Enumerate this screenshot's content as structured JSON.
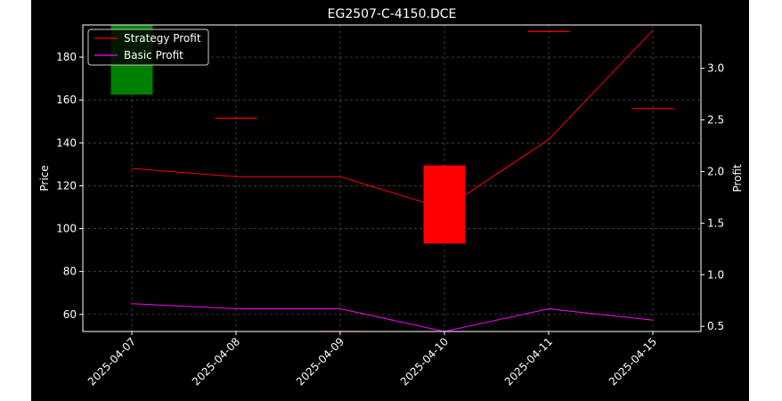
{
  "chart_data": {
    "type": "candlestick+line",
    "title": "EG2507-C-4150.DCE",
    "ylabel_left": "Price",
    "ylabel_right": "Profit",
    "xlabel": "",
    "categories": [
      "2025-04-07",
      "2025-04-08",
      "2025-04-09",
      "2025-04-10",
      "2025-04-11",
      "2025-04-15"
    ],
    "price_ylim": [
      52,
      195
    ],
    "price_yticks": [
      60,
      80,
      100,
      120,
      140,
      160,
      180
    ],
    "profit_ylim": [
      0.45,
      3.42
    ],
    "profit_yticks": [
      0.5,
      1.0,
      1.5,
      2.0,
      2.5,
      3.0
    ],
    "candles": [
      {
        "date": "2025-04-07",
        "open": 162.5,
        "close": 196,
        "high": 196,
        "low": 162.5,
        "color": "#008000"
      },
      {
        "date": "2025-04-08",
        "open": 151.5,
        "close": 151.5,
        "high": 151.5,
        "low": 151.5,
        "color": "#ff0000"
      },
      {
        "date": "2025-04-09",
        "open": 52,
        "close": 52,
        "high": 52,
        "low": 52,
        "color": "#ff0000"
      },
      {
        "date": "2025-04-10",
        "open": 129.5,
        "close": 93,
        "high": 129.5,
        "low": 93,
        "color": "#ff0000"
      },
      {
        "date": "2025-04-11",
        "open": 192,
        "close": 192,
        "high": 192,
        "low": 192,
        "color": "#ff0000"
      },
      {
        "date": "2025-04-15",
        "open": 156,
        "close": 156,
        "high": 156,
        "low": 156,
        "color": "#ff0000"
      }
    ],
    "series": [
      {
        "name": "Strategy Profit",
        "color": "#ff0000",
        "values": [
          2.03,
          1.95,
          1.95,
          1.64,
          2.31,
          3.37
        ]
      },
      {
        "name": "Basic Profit",
        "color": "#ff00ff",
        "values": [
          0.72,
          0.67,
          0.67,
          0.45,
          0.67,
          0.56
        ]
      }
    ],
    "grid": true,
    "legend_position": "top-left"
  }
}
